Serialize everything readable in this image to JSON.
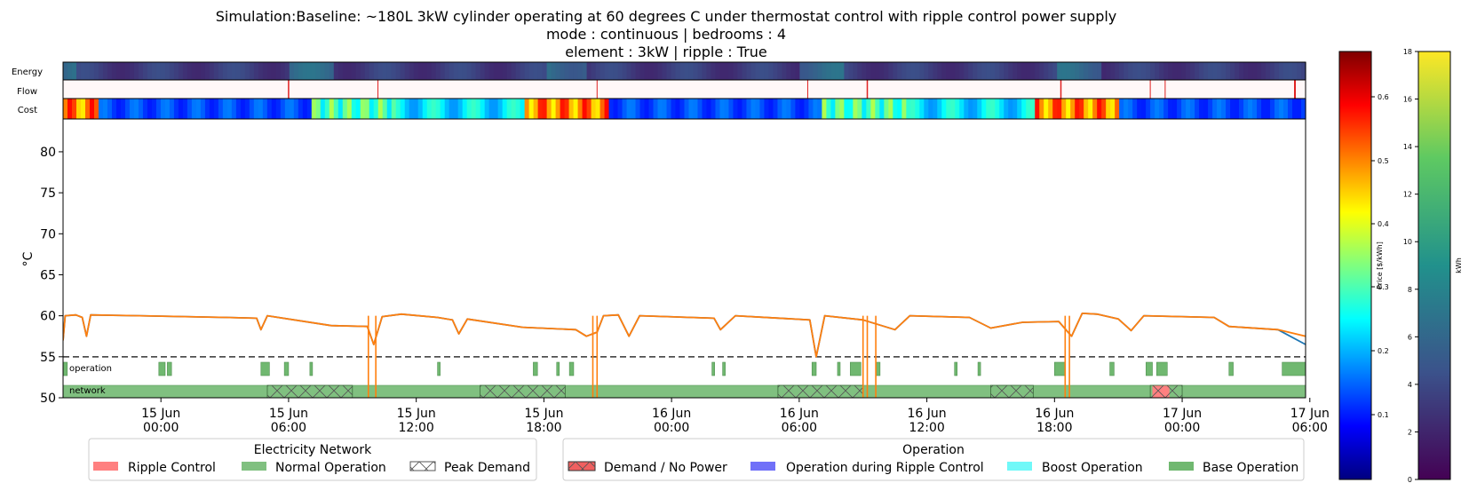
{
  "title": {
    "line1": "Simulation:Baseline: ~180L 3kW cylinder operating at 60 degrees C under thermostat control with ripple control power supply",
    "line2": "mode : continuous | bedrooms : 4",
    "line3": "element : 3kW | ripple : True"
  },
  "chart_data": {
    "type": "line",
    "ylabel": "°C",
    "ylim": [
      50,
      84
    ],
    "yticks": [
      50,
      55,
      60,
      65,
      70,
      75,
      80
    ],
    "xlim_hours": [
      -4.6,
      53.8
    ],
    "xticks": [
      {
        "h": 0,
        "l1": "15 Jun",
        "l2": "00:00"
      },
      {
        "h": 6,
        "l1": "15 Jun",
        "l2": "06:00"
      },
      {
        "h": 12,
        "l1": "15 Jun",
        "l2": "12:00"
      },
      {
        "h": 18,
        "l1": "15 Jun",
        "l2": "18:00"
      },
      {
        "h": 24,
        "l1": "16 Jun",
        "l2": "00:00"
      },
      {
        "h": 30,
        "l1": "16 Jun",
        "l2": "06:00"
      },
      {
        "h": 36,
        "l1": "16 Jun",
        "l2": "12:00"
      },
      {
        "h": 42,
        "l1": "16 Jun",
        "l2": "18:00"
      },
      {
        "h": 48,
        "l1": "17 Jun",
        "l2": "00:00"
      },
      {
        "h": 54,
        "l1": "17 Jun",
        "l2": "06:00"
      }
    ],
    "setpoint_line": 55,
    "series": [
      {
        "color": "#ff7f0e",
        "points": [
          [
            -4.6,
            57
          ],
          [
            -4.5,
            60
          ],
          [
            -4.0,
            60.1
          ],
          [
            -3.7,
            59.8
          ],
          [
            -3.5,
            57.5
          ],
          [
            -3.3,
            60.1
          ],
          [
            -1,
            60
          ],
          [
            3,
            59.8
          ],
          [
            4.5,
            59.7
          ],
          [
            4.7,
            58.3
          ],
          [
            5,
            60
          ],
          [
            8,
            58.8
          ],
          [
            9.7,
            58.7
          ],
          [
            10.0,
            56.5
          ],
          [
            10.4,
            59.9
          ],
          [
            11.3,
            60.2
          ],
          [
            13,
            59.8
          ],
          [
            13.7,
            59.5
          ],
          [
            14,
            57.8
          ],
          [
            14.4,
            59.6
          ],
          [
            17,
            58.6
          ],
          [
            19.5,
            58.3
          ],
          [
            20.0,
            57.5
          ],
          [
            20.5,
            58.0
          ],
          [
            20.8,
            60.0
          ],
          [
            21.5,
            60.1
          ],
          [
            22,
            57.5
          ],
          [
            22.5,
            60.0
          ],
          [
            26,
            59.7
          ],
          [
            26.3,
            58.3
          ],
          [
            27,
            60
          ],
          [
            30.5,
            59.5
          ],
          [
            30.8,
            55
          ],
          [
            31.2,
            60
          ],
          [
            33,
            59.5
          ],
          [
            34.5,
            58.3
          ],
          [
            35.2,
            60
          ],
          [
            38,
            59.8
          ],
          [
            39.0,
            58.5
          ],
          [
            40.5,
            59.2
          ],
          [
            42.2,
            59.3
          ],
          [
            42.8,
            57.5
          ],
          [
            43.3,
            60.3
          ],
          [
            44,
            60.2
          ],
          [
            45,
            59.6
          ],
          [
            45.6,
            58.2
          ],
          [
            46.2,
            60.0
          ],
          [
            49.5,
            59.8
          ],
          [
            50.2,
            58.7
          ],
          [
            52.5,
            58.3
          ],
          [
            53.8,
            57.5
          ]
        ]
      },
      {
        "color": "#1f77b4",
        "points": [
          [
            -4.6,
            57
          ],
          [
            -4.5,
            60
          ],
          [
            -4.0,
            60.1
          ],
          [
            -3.7,
            59.8
          ],
          [
            -3.5,
            57.5
          ],
          [
            -3.3,
            60.1
          ],
          [
            -1,
            60
          ],
          [
            3,
            59.8
          ],
          [
            4.5,
            59.7
          ],
          [
            4.7,
            58.3
          ],
          [
            5,
            60
          ],
          [
            8,
            58.8
          ],
          [
            9.7,
            58.7
          ],
          [
            10.0,
            56.5
          ],
          [
            10.4,
            59.9
          ],
          [
            11.3,
            60.2
          ],
          [
            13,
            59.8
          ],
          [
            13.7,
            59.5
          ],
          [
            14,
            57.8
          ],
          [
            14.4,
            59.6
          ],
          [
            17,
            58.6
          ],
          [
            19.5,
            58.3
          ],
          [
            20.0,
            57.5
          ],
          [
            20.5,
            58.0
          ],
          [
            20.8,
            60.0
          ],
          [
            21.5,
            60.1
          ],
          [
            22,
            57.5
          ],
          [
            22.5,
            60.0
          ],
          [
            26,
            59.7
          ],
          [
            26.3,
            58.3
          ],
          [
            27,
            60
          ],
          [
            30.5,
            59.5
          ],
          [
            30.8,
            55
          ],
          [
            31.2,
            60
          ],
          [
            33,
            59.5
          ],
          [
            34.5,
            58.3
          ],
          [
            35.2,
            60
          ],
          [
            38,
            59.8
          ],
          [
            39.0,
            58.5
          ],
          [
            40.5,
            59.2
          ],
          [
            42.2,
            59.3
          ],
          [
            42.8,
            57.5
          ],
          [
            43.3,
            60.3
          ],
          [
            44,
            60.2
          ],
          [
            45,
            59.6
          ],
          [
            45.6,
            58.2
          ],
          [
            46.2,
            60.0
          ],
          [
            49.5,
            59.8
          ],
          [
            50.2,
            58.7
          ],
          [
            52.5,
            58.3
          ],
          [
            53.8,
            56.5
          ]
        ]
      }
    ],
    "operation_bars": [
      [
        -4.6,
        -4.4
      ],
      [
        -0.1,
        0.2
      ],
      [
        0.3,
        0.5
      ],
      [
        4.7,
        5.1
      ],
      [
        5.8,
        6.0
      ],
      [
        7.0,
        7.1
      ],
      [
        13.0,
        13.1
      ],
      [
        17.5,
        17.7
      ],
      [
        18.6,
        18.7
      ],
      [
        19.2,
        19.4
      ],
      [
        25.9,
        26.0
      ],
      [
        26.4,
        26.5
      ],
      [
        30.6,
        30.8
      ],
      [
        31.8,
        31.9
      ],
      [
        32.4,
        32.9
      ],
      [
        33.6,
        33.8
      ],
      [
        37.3,
        37.4
      ],
      [
        38.4,
        38.5
      ],
      [
        42.0,
        42.5
      ],
      [
        44.6,
        44.8
      ],
      [
        46.3,
        46.6
      ],
      [
        46.8,
        47.3
      ],
      [
        50.2,
        50.4
      ],
      [
        52.7,
        53.8
      ]
    ],
    "network_normal": [
      -4.6,
      53.8
    ],
    "network_ripple": [
      [
        46.6,
        47.4
      ]
    ],
    "network_peak": [
      [
        5,
        9
      ],
      [
        15,
        19
      ],
      [
        29,
        33
      ],
      [
        39,
        41
      ],
      [
        46.5,
        48
      ]
    ],
    "strips": {
      "labels": [
        "Energy",
        "Flow",
        "Cost"
      ]
    },
    "colorbars": [
      {
        "label": "Price [$/kWh]",
        "ticks": [
          "0.1",
          "0.2",
          "0.3",
          "0.4",
          "0.5",
          "0.6"
        ]
      },
      {
        "label": "kWh",
        "ticks": [
          "0",
          "2",
          "4",
          "6",
          "8",
          "10",
          "12",
          "14",
          "16",
          "18"
        ]
      }
    ],
    "legends": [
      {
        "title": "Electricity Network",
        "items": [
          {
            "label": "Ripple Control",
            "color": "#ff8080",
            "hatch": false
          },
          {
            "label": "Normal Operation",
            "color": "#80c080",
            "hatch": false
          },
          {
            "label": "Peak Demand",
            "color": "#ffffff",
            "hatch": true
          }
        ]
      },
      {
        "title": "Operation",
        "items": [
          {
            "label": "Demand / No Power",
            "color": "#f06060",
            "hatch": true
          },
          {
            "label": "Operation during Ripple Control",
            "color": "#7070f8",
            "hatch": false
          },
          {
            "label": "Boost Operation",
            "color": "#70f8f8",
            "hatch": false
          },
          {
            "label": "Base Operation",
            "color": "#70b870",
            "hatch": false
          }
        ]
      }
    ],
    "band_labels": {
      "operation": "operation",
      "network": "network"
    }
  }
}
